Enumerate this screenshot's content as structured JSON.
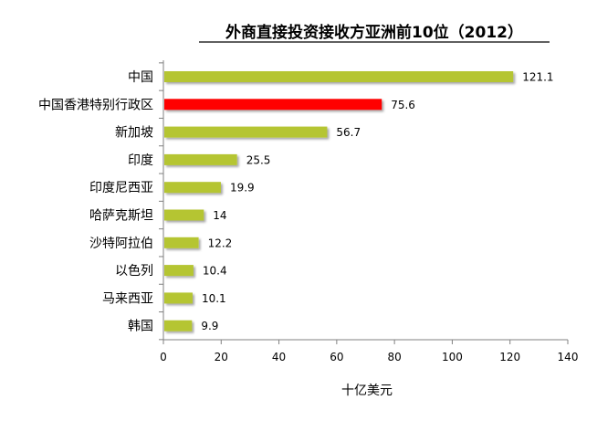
{
  "chart_data": {
    "type": "bar",
    "orientation": "horizontal",
    "title": "外商直接投资接收方亚洲前10位（2012）",
    "xlabel": "十亿美元",
    "ylabel": "",
    "categories": [
      "中国",
      "中国香港特别行政区",
      "新加坡",
      "印度",
      "印度尼西亚",
      "哈萨克斯坦",
      "沙特阿拉伯",
      "以色列",
      "马来西亚",
      "韩国"
    ],
    "values": [
      121.1,
      75.6,
      56.7,
      25.5,
      19.9,
      14,
      12.2,
      10.4,
      10.1,
      9.9
    ],
    "value_labels": [
      "121.1",
      "75.6",
      "56.7",
      "25.5",
      "19.9",
      "14",
      "12.2",
      "10.4",
      "10.1",
      "9.9"
    ],
    "xlim": [
      0,
      140
    ],
    "xticks": [
      0,
      20,
      40,
      60,
      80,
      100,
      120,
      140
    ],
    "grid": false,
    "legend": "none",
    "colors": {
      "default_bar": "#B5C531",
      "highlight_bar": "#FF0000",
      "highlight_category": "中国香港特别行政区"
    }
  }
}
